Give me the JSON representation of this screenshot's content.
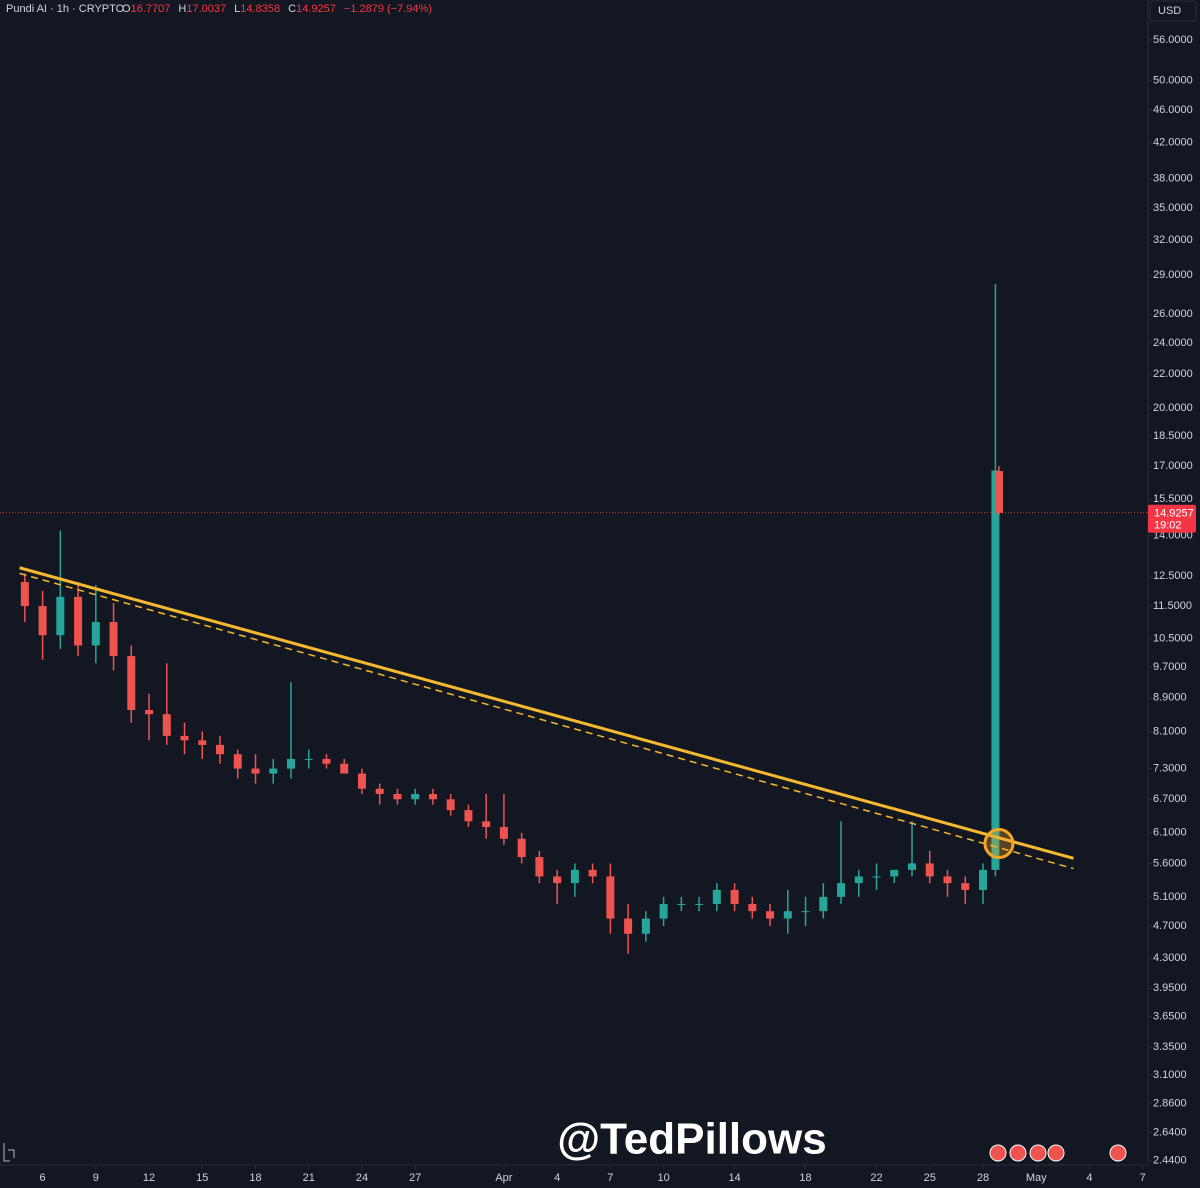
{
  "chart_data": {
    "type": "candlestick",
    "title": "Pundi AI · 1h · CRYPTO",
    "ohlc_header": [
      {
        "key": "O",
        "value": "16.7707"
      },
      {
        "key": "H",
        "value": "17.0037"
      },
      {
        "key": "L",
        "value": "14.8358"
      },
      {
        "key": "C",
        "value": "14.9257"
      }
    ],
    "change": "−1.2879 (−7.94%)",
    "currency": "USD",
    "watermark": "@TedPillows",
    "log_scale": true,
    "up_color": "#26a69a",
    "down_color": "#ef5350",
    "x": [
      -1,
      0,
      1,
      2,
      3,
      4,
      5,
      6,
      7,
      8,
      9,
      10,
      11,
      12,
      13,
      14,
      15,
      16,
      17,
      18,
      19,
      20,
      21,
      22,
      23,
      24,
      25,
      26,
      27,
      28,
      29,
      30,
      31,
      32,
      33,
      34,
      35,
      36,
      37,
      38,
      39,
      40,
      41,
      42,
      43,
      44,
      45,
      46,
      47,
      48,
      49,
      50,
      51,
      52,
      53,
      53.7,
      53.9
    ],
    "open": [
      12.3,
      11.5,
      10.6,
      11.8,
      10.3,
      11.0,
      10.0,
      8.6,
      8.5,
      8.0,
      7.9,
      7.8,
      7.6,
      7.3,
      7.2,
      7.3,
      7.5,
      7.5,
      7.4,
      7.2,
      6.9,
      6.8,
      6.7,
      6.8,
      6.7,
      6.5,
      6.3,
      6.2,
      6.0,
      5.7,
      5.4,
      5.3,
      5.5,
      5.4,
      4.8,
      4.6,
      4.8,
      5.0,
      5.0,
      5.0,
      5.2,
      5.0,
      4.9,
      4.8,
      4.9,
      4.9,
      5.1,
      5.3,
      5.4,
      5.4,
      5.5,
      5.6,
      5.4,
      5.3,
      5.2,
      5.5,
      16.7707
    ],
    "high": [
      12.6,
      12.0,
      14.2,
      12.3,
      12.2,
      11.6,
      10.3,
      9.0,
      9.8,
      8.3,
      8.1,
      8.0,
      7.7,
      7.6,
      7.5,
      9.3,
      7.7,
      7.6,
      7.5,
      7.3,
      7.0,
      6.9,
      6.9,
      6.9,
      6.8,
      6.6,
      6.8,
      6.8,
      6.1,
      5.8,
      5.5,
      5.6,
      5.6,
      5.6,
      5.0,
      4.9,
      5.1,
      5.1,
      5.1,
      5.3,
      5.3,
      5.1,
      5.0,
      5.2,
      5.1,
      5.3,
      6.3,
      5.5,
      5.6,
      5.5,
      6.3,
      5.8,
      5.5,
      5.4,
      5.6,
      28.3,
      17.0037
    ],
    "low": [
      11.0,
      9.9,
      10.2,
      10.0,
      9.8,
      9.6,
      8.3,
      7.9,
      7.8,
      7.6,
      7.5,
      7.4,
      7.1,
      7.0,
      7.0,
      7.1,
      7.3,
      7.3,
      7.2,
      6.8,
      6.6,
      6.6,
      6.6,
      6.6,
      6.4,
      6.2,
      6.0,
      5.9,
      5.6,
      5.3,
      5.0,
      5.1,
      5.3,
      4.6,
      4.35,
      4.5,
      4.7,
      4.9,
      4.9,
      4.9,
      4.9,
      4.8,
      4.7,
      4.6,
      4.7,
      4.8,
      5.0,
      5.1,
      5.2,
      5.3,
      5.4,
      5.3,
      5.1,
      5.0,
      5.0,
      5.4,
      14.8358
    ],
    "close": [
      11.5,
      10.6,
      11.8,
      10.3,
      11.0,
      10.0,
      8.6,
      8.5,
      8.0,
      7.9,
      7.8,
      7.6,
      7.3,
      7.2,
      7.3,
      7.5,
      7.5,
      7.4,
      7.2,
      6.9,
      6.8,
      6.7,
      6.8,
      6.7,
      6.5,
      6.3,
      6.2,
      6.0,
      5.7,
      5.4,
      5.3,
      5.5,
      5.4,
      4.8,
      4.6,
      4.8,
      5.0,
      5.0,
      5.0,
      5.2,
      5.0,
      4.9,
      4.8,
      4.9,
      4.9,
      5.1,
      5.3,
      5.4,
      5.4,
      5.5,
      5.6,
      5.4,
      5.3,
      5.2,
      5.5,
      16.8,
      14.9257
    ],
    "xlim": [
      -2.4,
      62.3
    ],
    "ylim": [
      2.41,
      62.6
    ],
    "xticks": [
      {
        "value": 0,
        "label": "6"
      },
      {
        "value": 3,
        "label": "9"
      },
      {
        "value": 6,
        "label": "12"
      },
      {
        "value": 9,
        "label": "15"
      },
      {
        "value": 12,
        "label": "18"
      },
      {
        "value": 15,
        "label": "21"
      },
      {
        "value": 18,
        "label": "24"
      },
      {
        "value": 21,
        "label": "27"
      },
      {
        "value": 26,
        "label": "Apr"
      },
      {
        "value": 29,
        "label": "4"
      },
      {
        "value": 32,
        "label": "7"
      },
      {
        "value": 35,
        "label": "10"
      },
      {
        "value": 39,
        "label": "14"
      },
      {
        "value": 43,
        "label": "18"
      },
      {
        "value": 47,
        "label": "22"
      },
      {
        "value": 50,
        "label": "25"
      },
      {
        "value": 53,
        "label": "28"
      },
      {
        "value": 56,
        "label": "May"
      },
      {
        "value": 59,
        "label": "4"
      },
      {
        "value": 62,
        "label": "7"
      }
    ],
    "yticks": [
      {
        "value": 56,
        "label": "56.0000"
      },
      {
        "value": 50,
        "label": "50.0000"
      },
      {
        "value": 46,
        "label": "46.0000"
      },
      {
        "value": 42,
        "label": "42.0000"
      },
      {
        "value": 38,
        "label": "38.0000"
      },
      {
        "value": 35,
        "label": "35.0000"
      },
      {
        "value": 32,
        "label": "32.0000"
      },
      {
        "value": 29,
        "label": "29.0000"
      },
      {
        "value": 26,
        "label": "26.0000"
      },
      {
        "value": 24,
        "label": "24.0000"
      },
      {
        "value": 22,
        "label": "22.0000"
      },
      {
        "value": 20,
        "label": "20.0000"
      },
      {
        "value": 18.5,
        "label": "18.5000"
      },
      {
        "value": 17,
        "label": "17.0000"
      },
      {
        "value": 15.5,
        "label": "15.5000"
      },
      {
        "value": 14,
        "label": "14.0000"
      },
      {
        "value": 12.5,
        "label": "12.5000"
      },
      {
        "value": 11.5,
        "label": "11.5000"
      },
      {
        "value": 10.5,
        "label": "10.5000"
      },
      {
        "value": 9.7,
        "label": "9.7000"
      },
      {
        "value": 8.9,
        "label": "8.9000"
      },
      {
        "value": 8.1,
        "label": "8.1000"
      },
      {
        "value": 7.3,
        "label": "7.3000"
      },
      {
        "value": 6.7,
        "label": "6.7000"
      },
      {
        "value": 6.1,
        "label": "6.1000"
      },
      {
        "value": 5.6,
        "label": "5.6000"
      },
      {
        "value": 5.1,
        "label": "5.1000"
      },
      {
        "value": 4.7,
        "label": "4.7000"
      },
      {
        "value": 4.3,
        "label": "4.3000"
      },
      {
        "value": 3.95,
        "label": "3.9500"
      },
      {
        "value": 3.65,
        "label": "3.6500"
      },
      {
        "value": 3.35,
        "label": "3.3500"
      },
      {
        "value": 3.1,
        "label": "3.1000"
      },
      {
        "value": 2.86,
        "label": "2.8600"
      },
      {
        "value": 2.64,
        "label": "2.6400"
      },
      {
        "value": 2.44,
        "label": "2.4400"
      }
    ],
    "last_price": {
      "value": 14.9257,
      "countdown": "19:02",
      "color": "#f23645"
    },
    "trendline": {
      "x": [
        -1.3,
        58.1
      ],
      "values": [
        12.8,
        5.68
      ],
      "color": "#f5b82e"
    },
    "trendline_dashed": {
      "x": [
        -1.3,
        58.1
      ],
      "values": [
        12.6,
        5.52
      ],
      "color": "#f5b82e"
    },
    "breakout_circle": {
      "x": 53.9,
      "value": 5.92,
      "color": "#f5a623"
    }
  }
}
